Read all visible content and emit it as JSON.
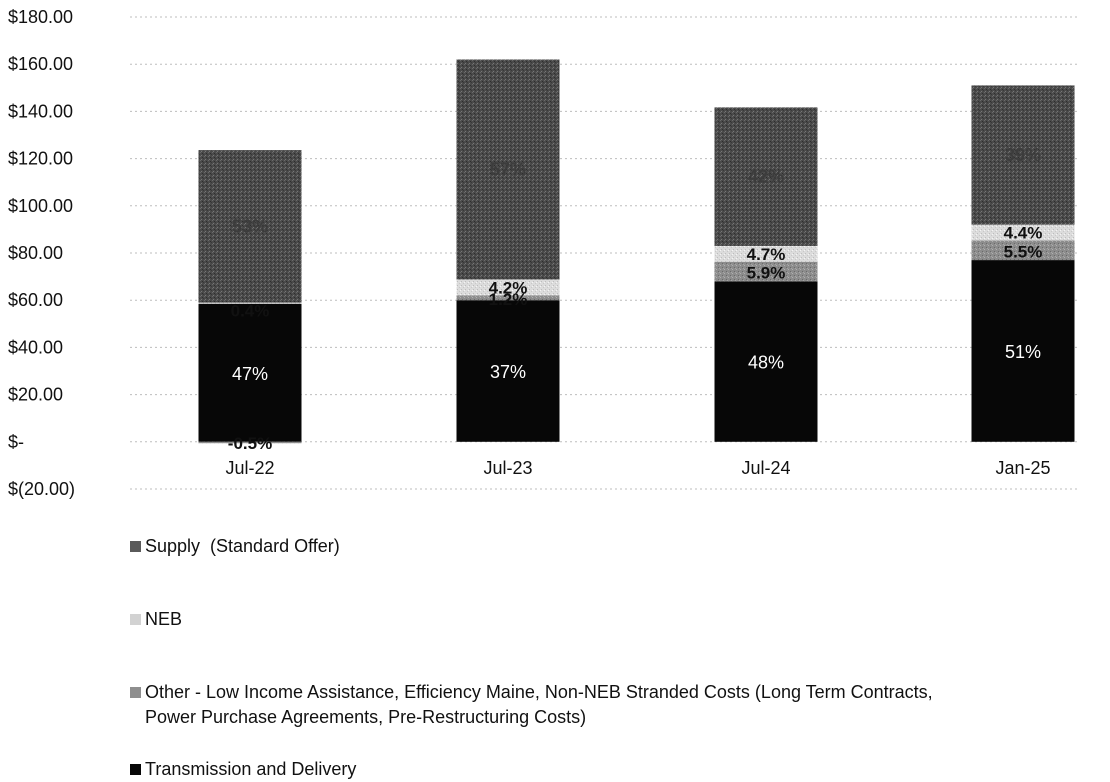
{
  "chart_data": {
    "type": "bar",
    "stacked": true,
    "title": "",
    "xlabel": "",
    "ylabel": "",
    "ylim": [
      -20,
      180
    ],
    "y_ticks": [
      {
        "value": 180,
        "label": "$180.00"
      },
      {
        "value": 160,
        "label": "$160.00"
      },
      {
        "value": 140,
        "label": "$140.00"
      },
      {
        "value": 120,
        "label": "$120.00"
      },
      {
        "value": 100,
        "label": "$100.00"
      },
      {
        "value": 80,
        "label": "$80.00"
      },
      {
        "value": 60,
        "label": "$60.00"
      },
      {
        "value": 40,
        "label": "$40.00"
      },
      {
        "value": 20,
        "label": "$20.00"
      },
      {
        "value": 0,
        "label": "$-"
      },
      {
        "value": -20,
        "label": "$(20.00)"
      }
    ],
    "grid": true,
    "legend_position": "bottom",
    "categories": [
      "Jul-22",
      "Jul-23",
      "Jul-24",
      "Jan-25"
    ],
    "series": [
      {
        "name": "Transmission and Delivery",
        "color": "#070707",
        "values": [
          58.5,
          60,
          68,
          77
        ],
        "labels": [
          "47%",
          "37%",
          "48%",
          "51%"
        ]
      },
      {
        "name": "Other - Low Income Assistance, Efficiency Maine, Non-NEB Stranded Costs (Long Term Contracts, Power Purchase Agreements, Pre-Restructuring Costs)",
        "color": "#8c8c8c",
        "values": [
          -0.6,
          2,
          8.3,
          8.3
        ],
        "labels": [
          "-0.5%",
          "1.2%",
          "5.9%",
          "5.5%"
        ]
      },
      {
        "name": "NEB",
        "color": "#d6d6d6",
        "values": [
          0.5,
          6.8,
          6.7,
          6.7
        ],
        "labels": [
          "0.4%",
          "4.2%",
          "4.7%",
          "4.4%"
        ]
      },
      {
        "name": "Supply  (Standard Offer)",
        "color": "#4a4a4a",
        "values": [
          64.6,
          93.2,
          58.7,
          59
        ],
        "labels": [
          "53%",
          "57%",
          "42%",
          "39%"
        ]
      }
    ]
  },
  "legend": {
    "items": [
      {
        "label": "Supply  (Standard Offer)",
        "swatch_color": "#5a5a5a"
      },
      {
        "label": "NEB",
        "swatch_color": "#d2d2d2"
      },
      {
        "label": "Other - Low Income Assistance, Efficiency Maine, Non-NEB Stranded Costs (Long Term Contracts,\nPower Purchase Agreements, Pre-Restructuring Costs)",
        "swatch_color": "#8e8e8e"
      },
      {
        "label": "Transmission and Delivery",
        "swatch_color": "#070707"
      }
    ]
  }
}
